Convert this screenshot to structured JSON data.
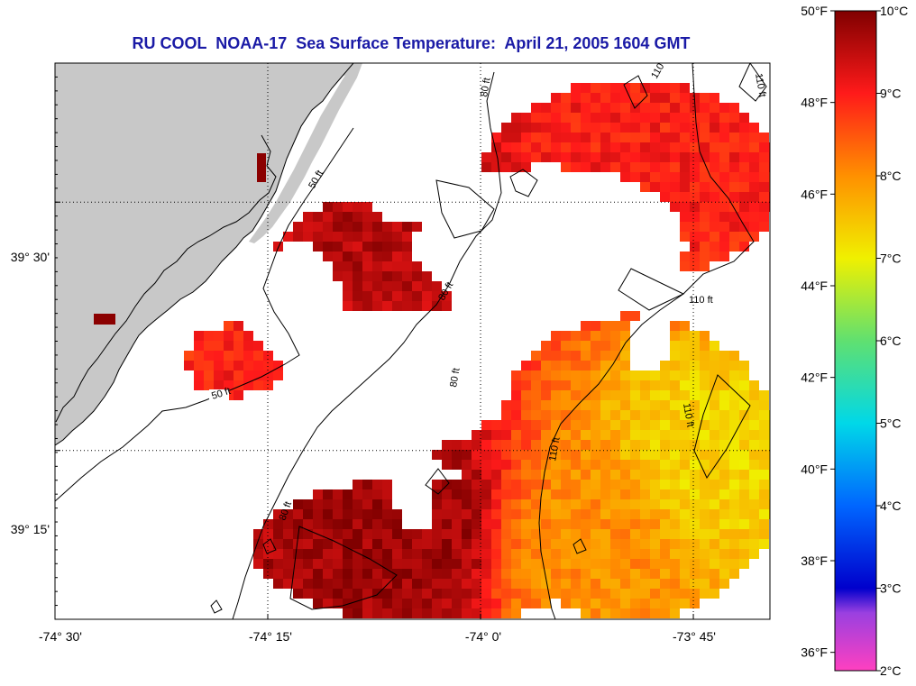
{
  "title": "RU COOL  NOAA-17  Sea Surface Temperature:  April 21, 2005 1604 GMT",
  "map": {
    "lon_range": [
      -74.5,
      -73.66
    ],
    "lat_range": [
      39.08,
      39.64
    ],
    "lon_ticks": [
      {
        "value": -74.5,
        "label": "-74° 30'"
      },
      {
        "value": -74.25,
        "label": "-74° 15'"
      },
      {
        "value": -74.0,
        "label": "-74° 0'"
      },
      {
        "value": -73.75,
        "label": "-73° 45'"
      }
    ],
    "lat_ticks": [
      {
        "value": 39.5,
        "label": "39° 30'"
      },
      {
        "value": 39.25,
        "label": "39° 15'"
      }
    ],
    "grid": true,
    "land_color": "#c8c8c8",
    "no_data_color": "#ffffff",
    "contour_labels": [
      "50 ft",
      "50 ft",
      "80 ft",
      "80 ft",
      "80 ft",
      "80 ft",
      "110 ft",
      "110 ft",
      "110 ft",
      "110 ft",
      "110 ft"
    ],
    "cell_temp_samples": [
      {
        "lon": -74.35,
        "lat": 39.42,
        "temp_c": 8.9
      },
      {
        "lon": -74.14,
        "lat": 39.48,
        "temp_c": 9.6
      },
      {
        "lon": -74.08,
        "lat": 39.17,
        "temp_c": 9.8
      },
      {
        "lon": -73.88,
        "lat": 39.15,
        "temp_c": 8.0
      },
      {
        "lon": -73.72,
        "lat": 39.25,
        "temp_c": 7.3
      },
      {
        "lon": -73.8,
        "lat": 39.52,
        "temp_c": 9.0
      }
    ]
  },
  "colorbar": {
    "label_placement": "right",
    "fahrenheit_labels": [
      "50°F",
      "48°F",
      "46°F",
      "44°F",
      "42°F",
      "40°F",
      "38°F",
      "36°F"
    ],
    "fahrenheit_values": [
      50,
      48,
      46,
      44,
      42,
      40,
      38,
      36
    ],
    "celsius_labels": [
      "10°C",
      "9°C",
      "8°C",
      "7°C",
      "6°C",
      "5°C",
      "4°C",
      "3°C",
      "2°C"
    ],
    "celsius_values": [
      10,
      9,
      8,
      7,
      6,
      5,
      4,
      3,
      2
    ],
    "range_c": [
      2,
      10
    ],
    "stops": [
      {
        "c": 2.0,
        "color": "#ff40c0"
      },
      {
        "c": 2.7,
        "color": "#9a40e0"
      },
      {
        "c": 3.0,
        "color": "#0000cc"
      },
      {
        "c": 4.0,
        "color": "#0066ff"
      },
      {
        "c": 5.0,
        "color": "#00d8e8"
      },
      {
        "c": 6.0,
        "color": "#60e070"
      },
      {
        "c": 7.0,
        "color": "#f0f000"
      },
      {
        "c": 8.0,
        "color": "#ff9000"
      },
      {
        "c": 9.0,
        "color": "#ff1a1a"
      },
      {
        "c": 10.0,
        "color": "#800000"
      }
    ]
  }
}
